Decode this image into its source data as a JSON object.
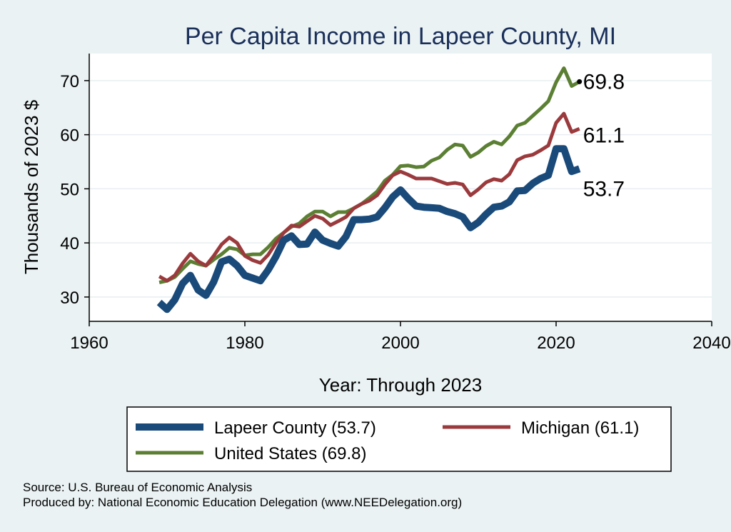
{
  "chart_data": {
    "type": "line",
    "title": "Per Capita Income in Lapeer County, MI",
    "xlabel": "Year: Through 2023",
    "ylabel": "Thousands of 2023 $",
    "xlim": [
      1960,
      2040
    ],
    "ylim": [
      25.5,
      75
    ],
    "xticks": [
      1960,
      1980,
      2000,
      2020,
      2040
    ],
    "yticks": [
      30,
      40,
      50,
      60,
      70
    ],
    "grid": "horizontal",
    "legend_position": "bottom",
    "x": [
      1969,
      1970,
      1971,
      1972,
      1973,
      1974,
      1975,
      1976,
      1977,
      1978,
      1979,
      1980,
      1981,
      1982,
      1983,
      1984,
      1985,
      1986,
      1987,
      1988,
      1989,
      1990,
      1991,
      1992,
      1993,
      1994,
      1995,
      1996,
      1997,
      1998,
      1999,
      2000,
      2001,
      2002,
      2003,
      2004,
      2005,
      2006,
      2007,
      2008,
      2009,
      2010,
      2011,
      2012,
      2013,
      2014,
      2015,
      2016,
      2017,
      2018,
      2019,
      2020,
      2021,
      2022,
      2023
    ],
    "series": [
      {
        "name": "Lapeer County (53.7)",
        "end_label": "53.7",
        "color": "#1a4a7a",
        "values": [
          29.0,
          27.7,
          29.5,
          32.5,
          34.0,
          31.3,
          30.3,
          32.8,
          36.5,
          37.0,
          35.8,
          34.0,
          33.5,
          33.0,
          35.0,
          37.5,
          40.5,
          41.3,
          39.7,
          39.8,
          42.0,
          40.5,
          39.9,
          39.4,
          41.2,
          44.3,
          44.3,
          44.4,
          44.8,
          46.5,
          48.5,
          49.8,
          48.2,
          46.8,
          46.6,
          46.5,
          46.4,
          45.8,
          45.4,
          44.8,
          42.8,
          43.8,
          45.3,
          46.6,
          46.8,
          47.6,
          49.6,
          49.7,
          51.0,
          51.9,
          52.5,
          57.4,
          57.4,
          53.2,
          53.7
        ]
      },
      {
        "name": "Michigan (61.1)",
        "end_label": "61.1",
        "color": "#9b3a3d",
        "values": [
          33.8,
          33.0,
          34.0,
          36.2,
          38.0,
          36.6,
          35.8,
          37.6,
          39.7,
          41.0,
          40.0,
          37.6,
          36.8,
          36.3,
          37.8,
          40.0,
          41.9,
          43.2,
          43.0,
          44.0,
          45.0,
          44.5,
          43.3,
          44.0,
          44.8,
          46.4,
          47.2,
          47.8,
          48.8,
          50.8,
          52.5,
          53.2,
          52.6,
          51.9,
          51.9,
          51.9,
          51.4,
          50.9,
          51.1,
          50.8,
          48.8,
          49.9,
          51.2,
          51.8,
          51.5,
          52.7,
          55.3,
          56.0,
          56.3,
          57.1,
          58.0,
          62.2,
          63.9,
          60.5,
          61.1
        ]
      },
      {
        "name": "United States (69.8)",
        "end_label": "69.8",
        "color": "#5b7f33",
        "values": [
          32.7,
          33.0,
          33.7,
          35.2,
          36.6,
          36.1,
          35.8,
          36.9,
          37.9,
          39.1,
          38.8,
          37.7,
          37.9,
          37.9,
          39.2,
          40.8,
          41.9,
          43.0,
          43.6,
          44.9,
          45.8,
          45.8,
          44.9,
          45.7,
          45.7,
          46.4,
          47.2,
          48.3,
          49.5,
          51.5,
          52.6,
          54.2,
          54.3,
          54.0,
          54.1,
          55.2,
          55.8,
          57.2,
          58.2,
          58.0,
          55.9,
          56.7,
          57.9,
          58.7,
          58.2,
          59.7,
          61.7,
          62.2,
          63.5,
          64.8,
          66.2,
          69.7,
          72.3,
          69.0,
          69.8
        ]
      }
    ],
    "source_lines": [
      "Source: U.S. Bureau of Economic Analysis",
      "Produced by: National Economic Education Delegation (www.NEEDelegation.org)"
    ]
  }
}
